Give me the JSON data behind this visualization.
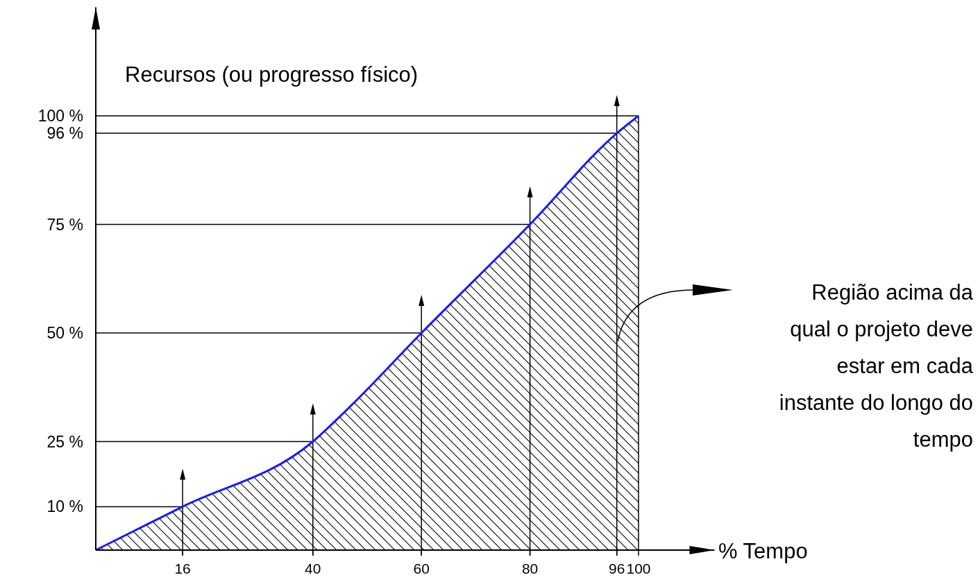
{
  "chart_data": {
    "type": "area",
    "ylabel": "Recursos (ou progresso físico)",
    "xlabel": "% Tempo",
    "annotations": [
      "Região acima da\nqual o projeto deve\nestar em cada\ninstante do longo do\ntempo"
    ],
    "x": [
      0,
      16,
      40,
      46,
      60,
      80,
      96,
      100
    ],
    "series": [
      {
        "color": "#1a1aff",
        "values": [
          0,
          10,
          25,
          32,
          50,
          75,
          96,
          100
        ]
      }
    ],
    "xlim": [
      0,
      114
    ],
    "ylim": [
      0,
      125
    ],
    "xticks": [
      16,
      40,
      60,
      80,
      96,
      100
    ],
    "yticks": [
      {
        "value": 10,
        "label": "10 %"
      },
      {
        "value": 25,
        "label": "25 %"
      },
      {
        "value": 50,
        "label": "50 %"
      },
      {
        "value": 75,
        "label": "75 %"
      },
      {
        "value": 96,
        "label": "96 %"
      },
      {
        "value": 100,
        "label": "100 %"
      }
    ],
    "ref_lines": [
      {
        "axis": "y",
        "value": 10
      },
      {
        "axis": "y",
        "value": 25
      },
      {
        "axis": "y",
        "value": 50
      },
      {
        "axis": "y",
        "value": 75
      },
      {
        "axis": "y",
        "value": 96
      },
      {
        "axis": "y",
        "value": 100
      },
      {
        "axis": "x",
        "value": 16
      },
      {
        "axis": "x",
        "value": 40
      },
      {
        "axis": "x",
        "value": 60
      },
      {
        "axis": "x",
        "value": 80
      },
      {
        "axis": "x",
        "value": 96
      }
    ]
  }
}
